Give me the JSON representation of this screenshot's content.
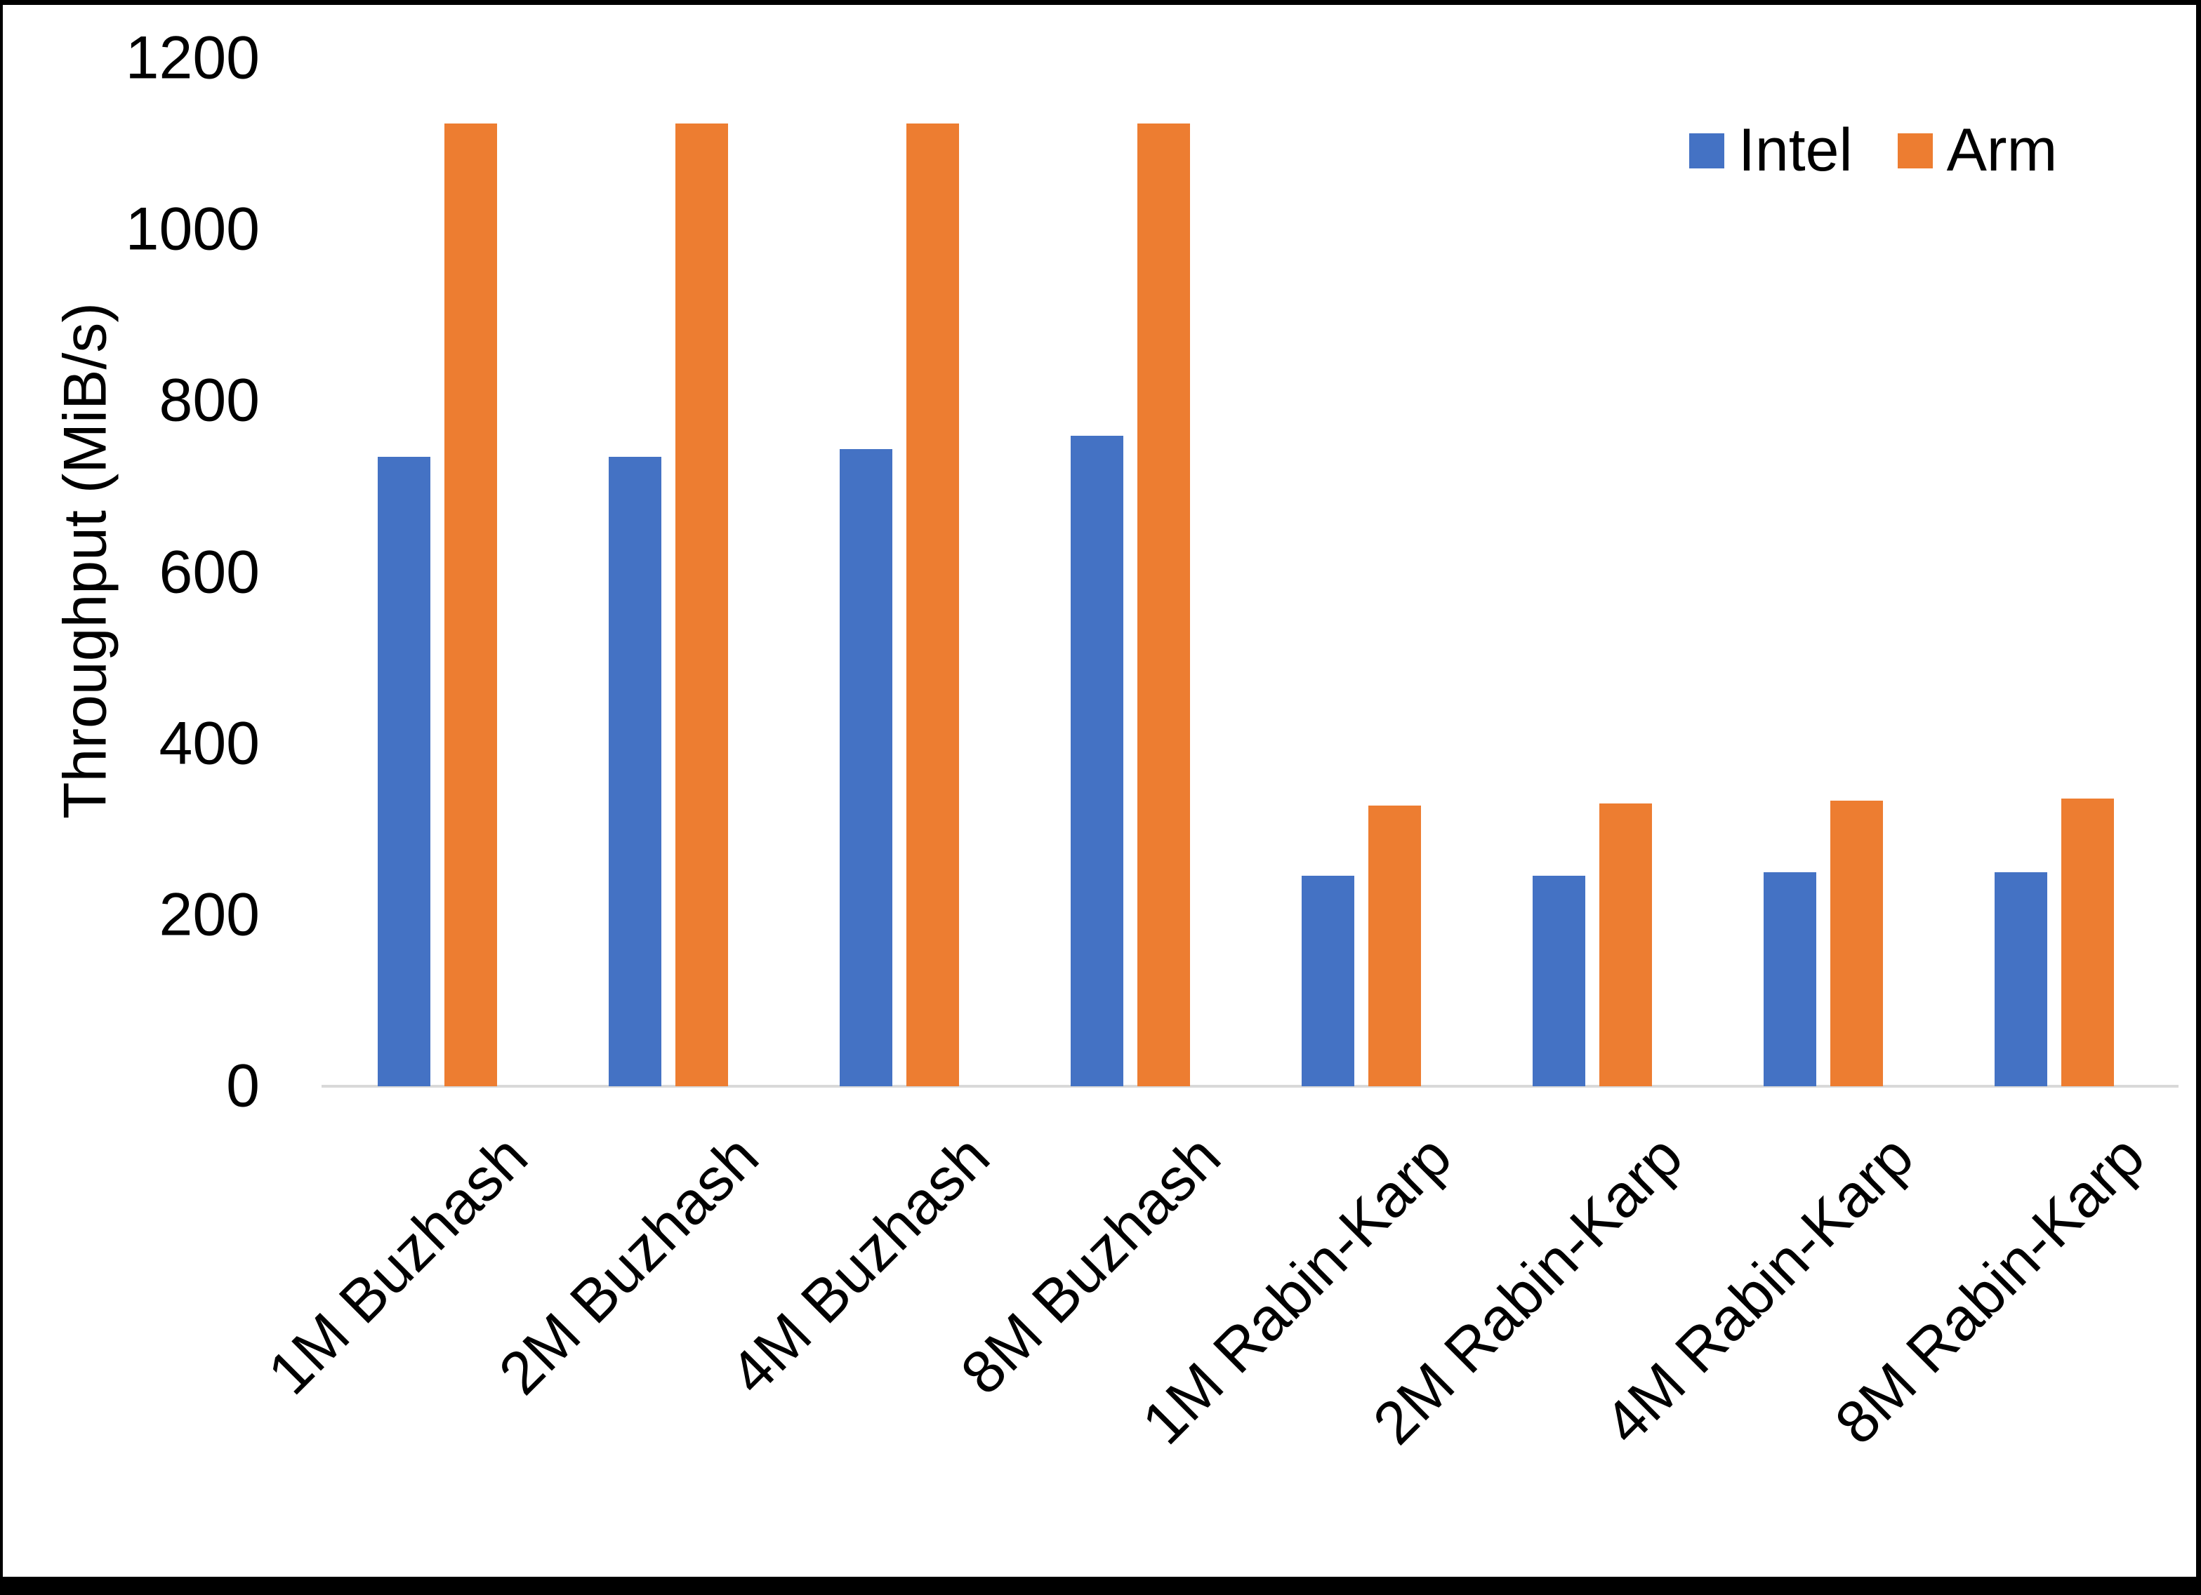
{
  "chart_data": {
    "type": "bar",
    "title": "",
    "xlabel": "",
    "ylabel": "Throughput (MiB/s)",
    "ylim": [
      0,
      1200
    ],
    "yticks": [
      0,
      200,
      400,
      600,
      800,
      1000,
      1200
    ],
    "grid": false,
    "legend_position": "top-right",
    "axis_line_color": "#D9D9D9",
    "text_color": "#000000",
    "categories": [
      "1M Buzhash",
      "2M Buzhash",
      "4M Buzhash",
      "8M Buzhash",
      "1M Rabin-Karp",
      "2M Rabin-Karp",
      "4M Rabin-Karp",
      "8M Rabin-Karp"
    ],
    "series": [
      {
        "name": "Intel",
        "color": "#4472C4",
        "values": [
          735,
          735,
          744,
          759,
          246,
          246,
          250,
          250
        ]
      },
      {
        "name": "Arm",
        "color": "#ED7D31",
        "values": [
          1124,
          1124,
          1124,
          1124,
          328,
          330,
          333,
          336
        ]
      }
    ]
  }
}
